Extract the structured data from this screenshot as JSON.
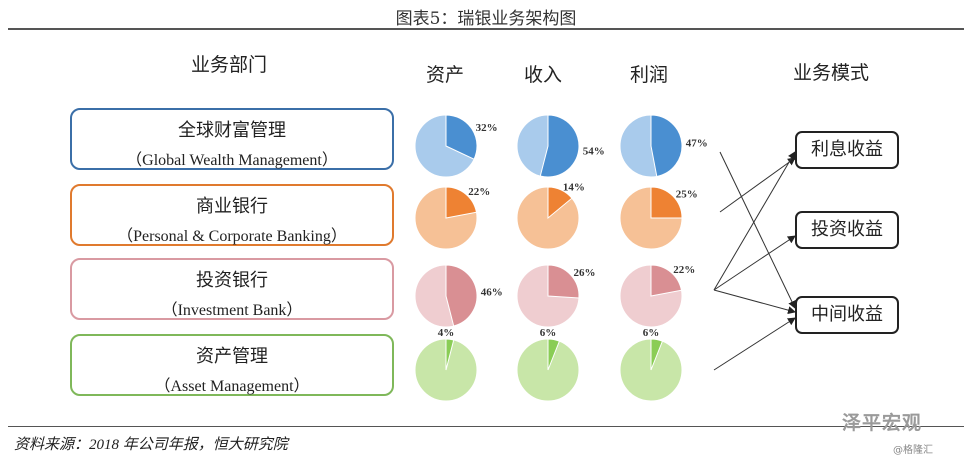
{
  "title": "图表5：瑞银业务架构图",
  "headers": {
    "segments": "业务部门",
    "assets": "资产",
    "revenue": "收入",
    "profit": "利润",
    "modes": "业务模式"
  },
  "colors": {
    "wealth": "#4a8fd1",
    "wealth_light": "#a9cbec",
    "personal": "#ee8233",
    "personal_light": "#f6c196",
    "investment": "#d98f93",
    "investment_light": "#efcdd0",
    "asset": "#8acd55",
    "asset_light": "#c8e6a8"
  },
  "segments": [
    {
      "cn": "全球财富管理",
      "en": "（Global Wealth Management）"
    },
    {
      "cn": "商业银行",
      "en": "（Personal & Corporate Banking）"
    },
    {
      "cn": "投资银行",
      "en": "（Investment Bank）"
    },
    {
      "cn": "资产管理",
      "en": "（Asset Management）"
    }
  ],
  "modes": [
    "利息收益",
    "投资收益",
    "中间收益"
  ],
  "source": "资料来源：2018 年公司年报，恒大研究院",
  "watermark": {
    "main": "泽平宏观",
    "sub": "@格隆汇"
  },
  "chart_data": {
    "type": "pie",
    "columns": [
      "资产",
      "收入",
      "利润"
    ],
    "rows": [
      {
        "segment": "全球财富管理",
        "values": [
          32,
          54,
          47
        ],
        "labels": [
          "32%",
          "54%",
          "47%"
        ]
      },
      {
        "segment": "商业银行",
        "values": [
          22,
          14,
          25
        ],
        "labels": [
          "22%",
          "14%",
          "25%"
        ]
      },
      {
        "segment": "投资银行",
        "values": [
          46,
          26,
          22
        ],
        "labels": [
          "46%",
          "26%",
          "22%"
        ]
      },
      {
        "segment": "资产管理",
        "values": [
          4,
          6,
          6
        ],
        "labels": [
          "4%",
          "6%",
          "6%"
        ]
      }
    ]
  }
}
